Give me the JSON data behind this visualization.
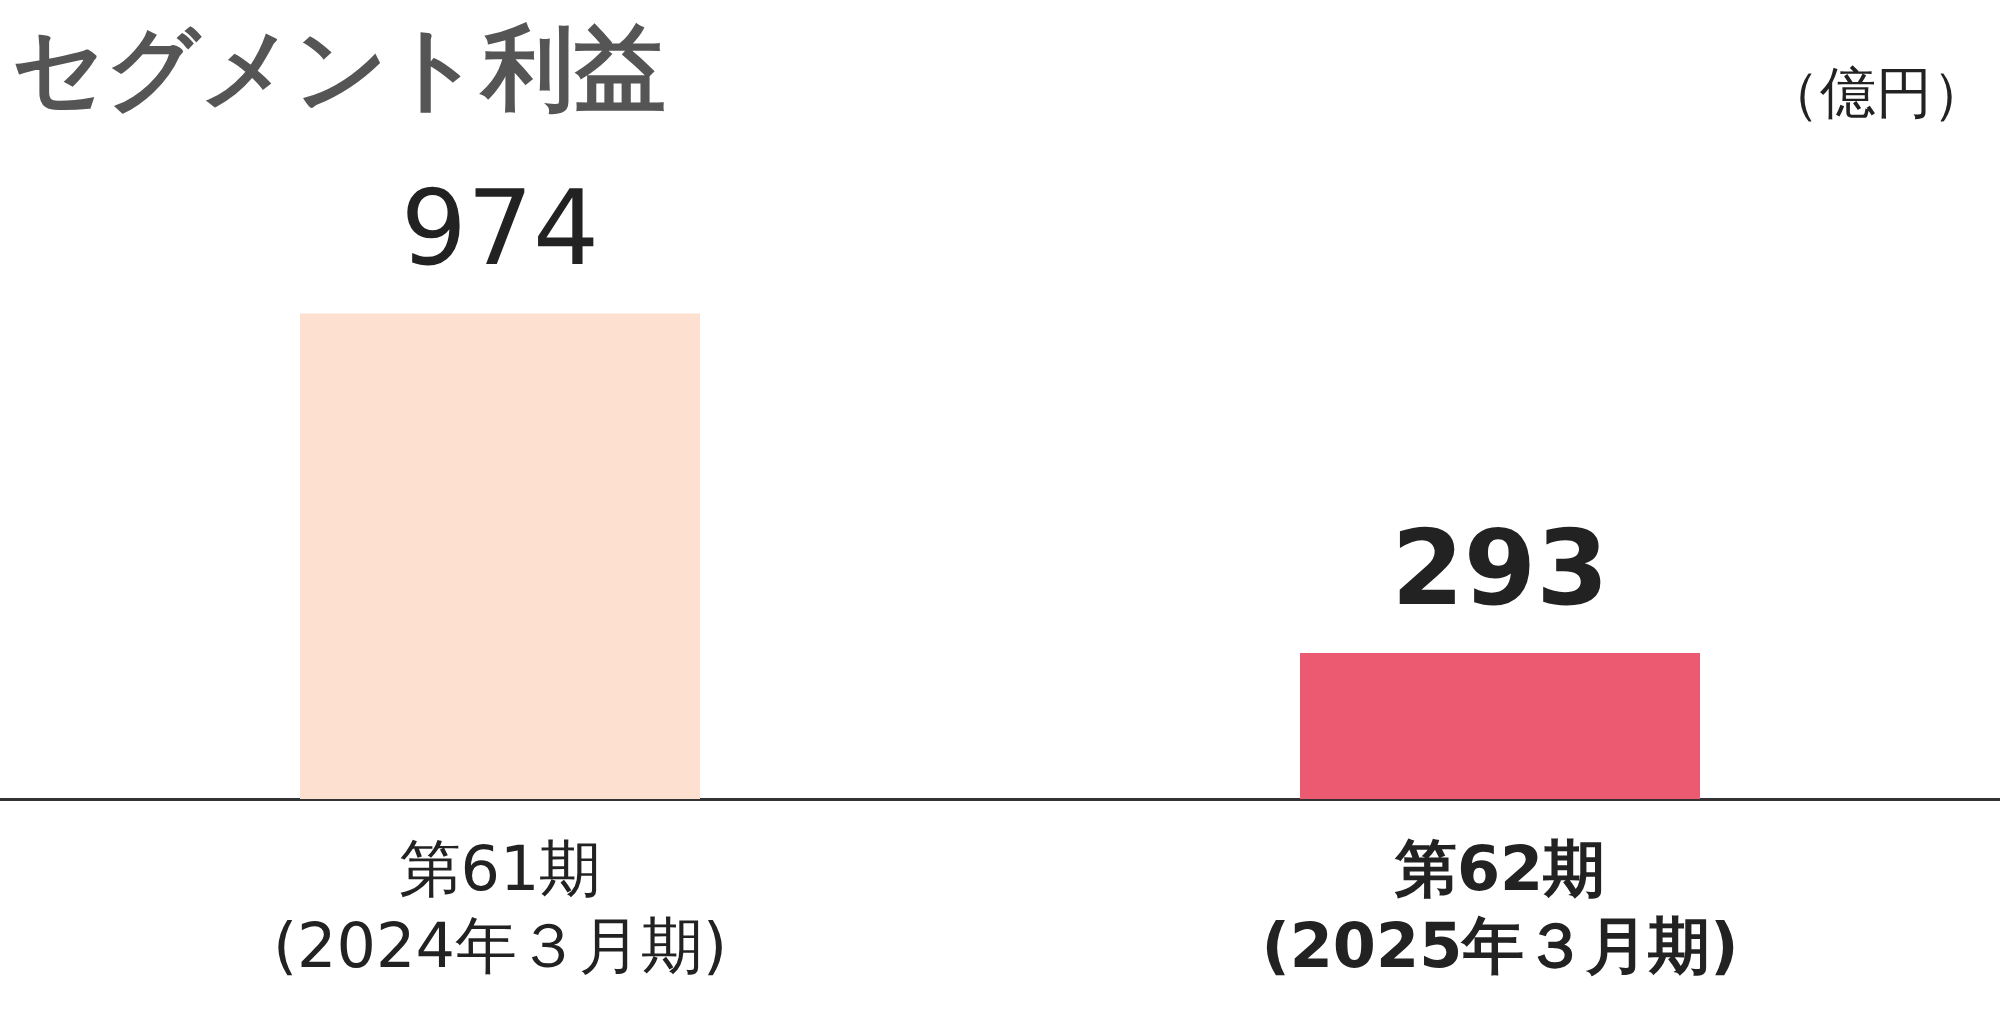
{
  "chart_data": {
    "type": "bar",
    "title": "セグメント利益",
    "annotations": [
      "（億円）"
    ],
    "categories": [
      "第61期\n(2024年３月期)",
      "第62期\n(2025年３月期)"
    ],
    "values": [
      974,
      293
    ],
    "colors": [
      "#fde0d0",
      "#ec5a72"
    ],
    "data_labels": true,
    "grid": false,
    "legend": false
  }
}
